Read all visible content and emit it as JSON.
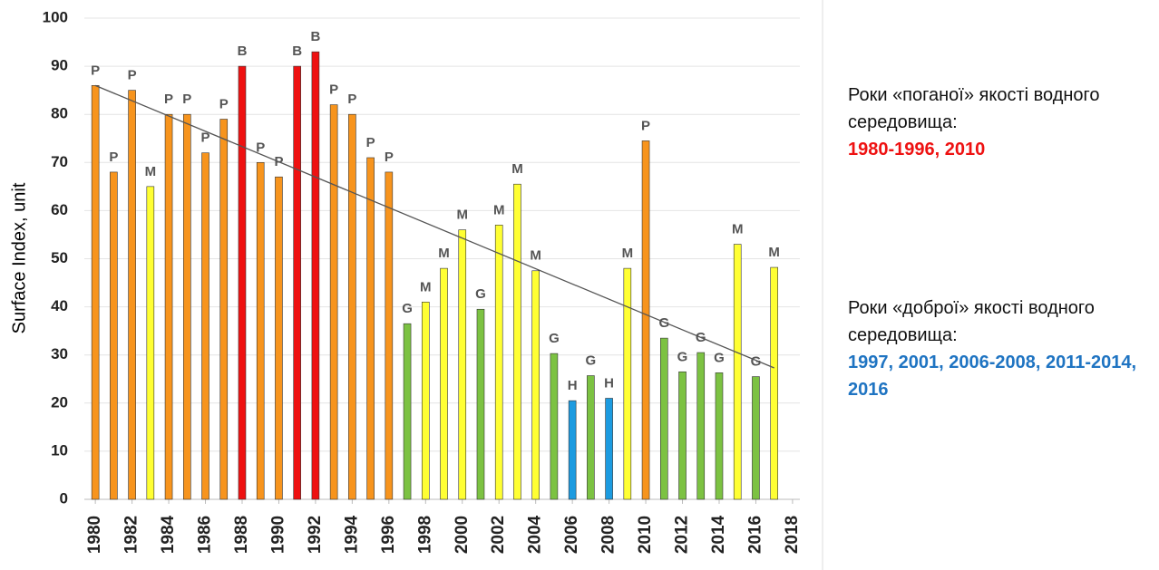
{
  "chart_data": {
    "type": "bar",
    "y_label": "Surface Index, unit",
    "x": [
      1980,
      1981,
      1982,
      1983,
      1984,
      1985,
      1986,
      1987,
      1988,
      1989,
      1990,
      1991,
      1992,
      1993,
      1994,
      1995,
      1996,
      1997,
      1998,
      1999,
      2000,
      2001,
      2002,
      2003,
      2004,
      2005,
      2006,
      2007,
      2008,
      2009,
      2010,
      2011,
      2012,
      2013,
      2014,
      2015,
      2016,
      2017
    ],
    "values": [
      86,
      68,
      85,
      65,
      80,
      80,
      72,
      79,
      90,
      70,
      67,
      90,
      93,
      82,
      80,
      71,
      68,
      36.5,
      41,
      48,
      56,
      39.5,
      57,
      65.5,
      47.5,
      30.3,
      20.5,
      25.7,
      21,
      48,
      74.5,
      33.5,
      26.5,
      30.5,
      26.3,
      53,
      25.5,
      48.2
    ],
    "labels": [
      "P",
      "P",
      "P",
      "M",
      "P",
      "P",
      "P",
      "P",
      "B",
      "P",
      "P",
      "B",
      "B",
      "P",
      "P",
      "P",
      "P",
      "G",
      "M",
      "M",
      "M",
      "G",
      "M",
      "M",
      "M",
      "G",
      "H",
      "G",
      "H",
      "M",
      "P",
      "G",
      "G",
      "G",
      "G",
      "M",
      "G",
      "M"
    ],
    "label_colors": {
      "P": "#f7941d",
      "M": "#ffff33",
      "B": "#ee1111",
      "G": "#7cc242",
      "H": "#1c9be0"
    },
    "trendline": {
      "x": [
        1980,
        2017
      ],
      "values": [
        86,
        27.3
      ]
    },
    "xlim": [
      1979.4,
      2018.4
    ],
    "xticks": [
      1980,
      1982,
      1984,
      1986,
      1988,
      1990,
      1992,
      1994,
      1996,
      1998,
      2000,
      2002,
      2004,
      2006,
      2008,
      2010,
      2012,
      2014,
      2016,
      2018
    ],
    "ylim": [
      0,
      100
    ],
    "yticks": [
      0,
      10,
      20,
      30,
      40,
      50,
      60,
      70,
      80,
      90,
      100
    ],
    "grid": true,
    "annotations": [
      {
        "text": "Роки «поганої» якості водного середовища:",
        "years": "1980-1996, 2010",
        "color": "#ee1111"
      },
      {
        "text": "Роки «доброї» якості водного середовища:",
        "years": "1997, 2001, 2006-2008, 2011-2014, 2016",
        "color": "#1f74c2"
      }
    ]
  }
}
